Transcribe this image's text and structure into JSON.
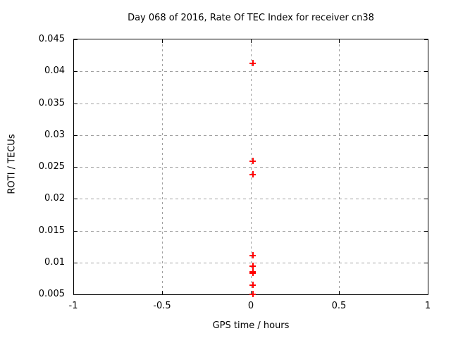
{
  "chart_data": {
    "type": "scatter",
    "title": "Day 068 of 2016, Rate Of TEC Index for receiver cn38",
    "xlabel": "GPS time / hours",
    "ylabel": "ROTI / TECUs",
    "xlim": [
      -1,
      1
    ],
    "ylim": [
      0.005,
      0.045
    ],
    "grid": true,
    "legend": "none",
    "x_ticks": [
      {
        "v": -1,
        "label": "-1"
      },
      {
        "v": -0.5,
        "label": "-0.5"
      },
      {
        "v": 0,
        "label": "0"
      },
      {
        "v": 0.5,
        "label": "0.5"
      },
      {
        "v": 1,
        "label": "1"
      }
    ],
    "y_ticks": [
      {
        "v": 0.005,
        "label": "0.005"
      },
      {
        "v": 0.01,
        "label": "0.01"
      },
      {
        "v": 0.015,
        "label": "0.015"
      },
      {
        "v": 0.02,
        "label": "0.02"
      },
      {
        "v": 0.025,
        "label": "0.025"
      },
      {
        "v": 0.03,
        "label": "0.03"
      },
      {
        "v": 0.035,
        "label": "0.035"
      },
      {
        "v": 0.04,
        "label": "0.04"
      },
      {
        "v": 0.045,
        "label": "0.045"
      }
    ],
    "series": [
      {
        "name": "ROTI",
        "marker": "plus",
        "color": "#ff0000",
        "points": [
          {
            "x": 0.008,
            "y": 0.0413
          },
          {
            "x": 0.008,
            "y": 0.026
          },
          {
            "x": 0.008,
            "y": 0.0239
          },
          {
            "x": 0.008,
            "y": 0.0112
          },
          {
            "x": 0.008,
            "y": 0.0095
          },
          {
            "x": 0.008,
            "y": 0.0086
          },
          {
            "x": 0.008,
            "y": 0.0084
          },
          {
            "x": 0.008,
            "y": 0.0065
          },
          {
            "x": 0.008,
            "y": 0.0051
          }
        ]
      }
    ]
  },
  "colors": {
    "background": "#ffffff",
    "border": "#000000",
    "grid": "#a0a0a0",
    "text": "#000000",
    "marker": "#ff0000"
  }
}
